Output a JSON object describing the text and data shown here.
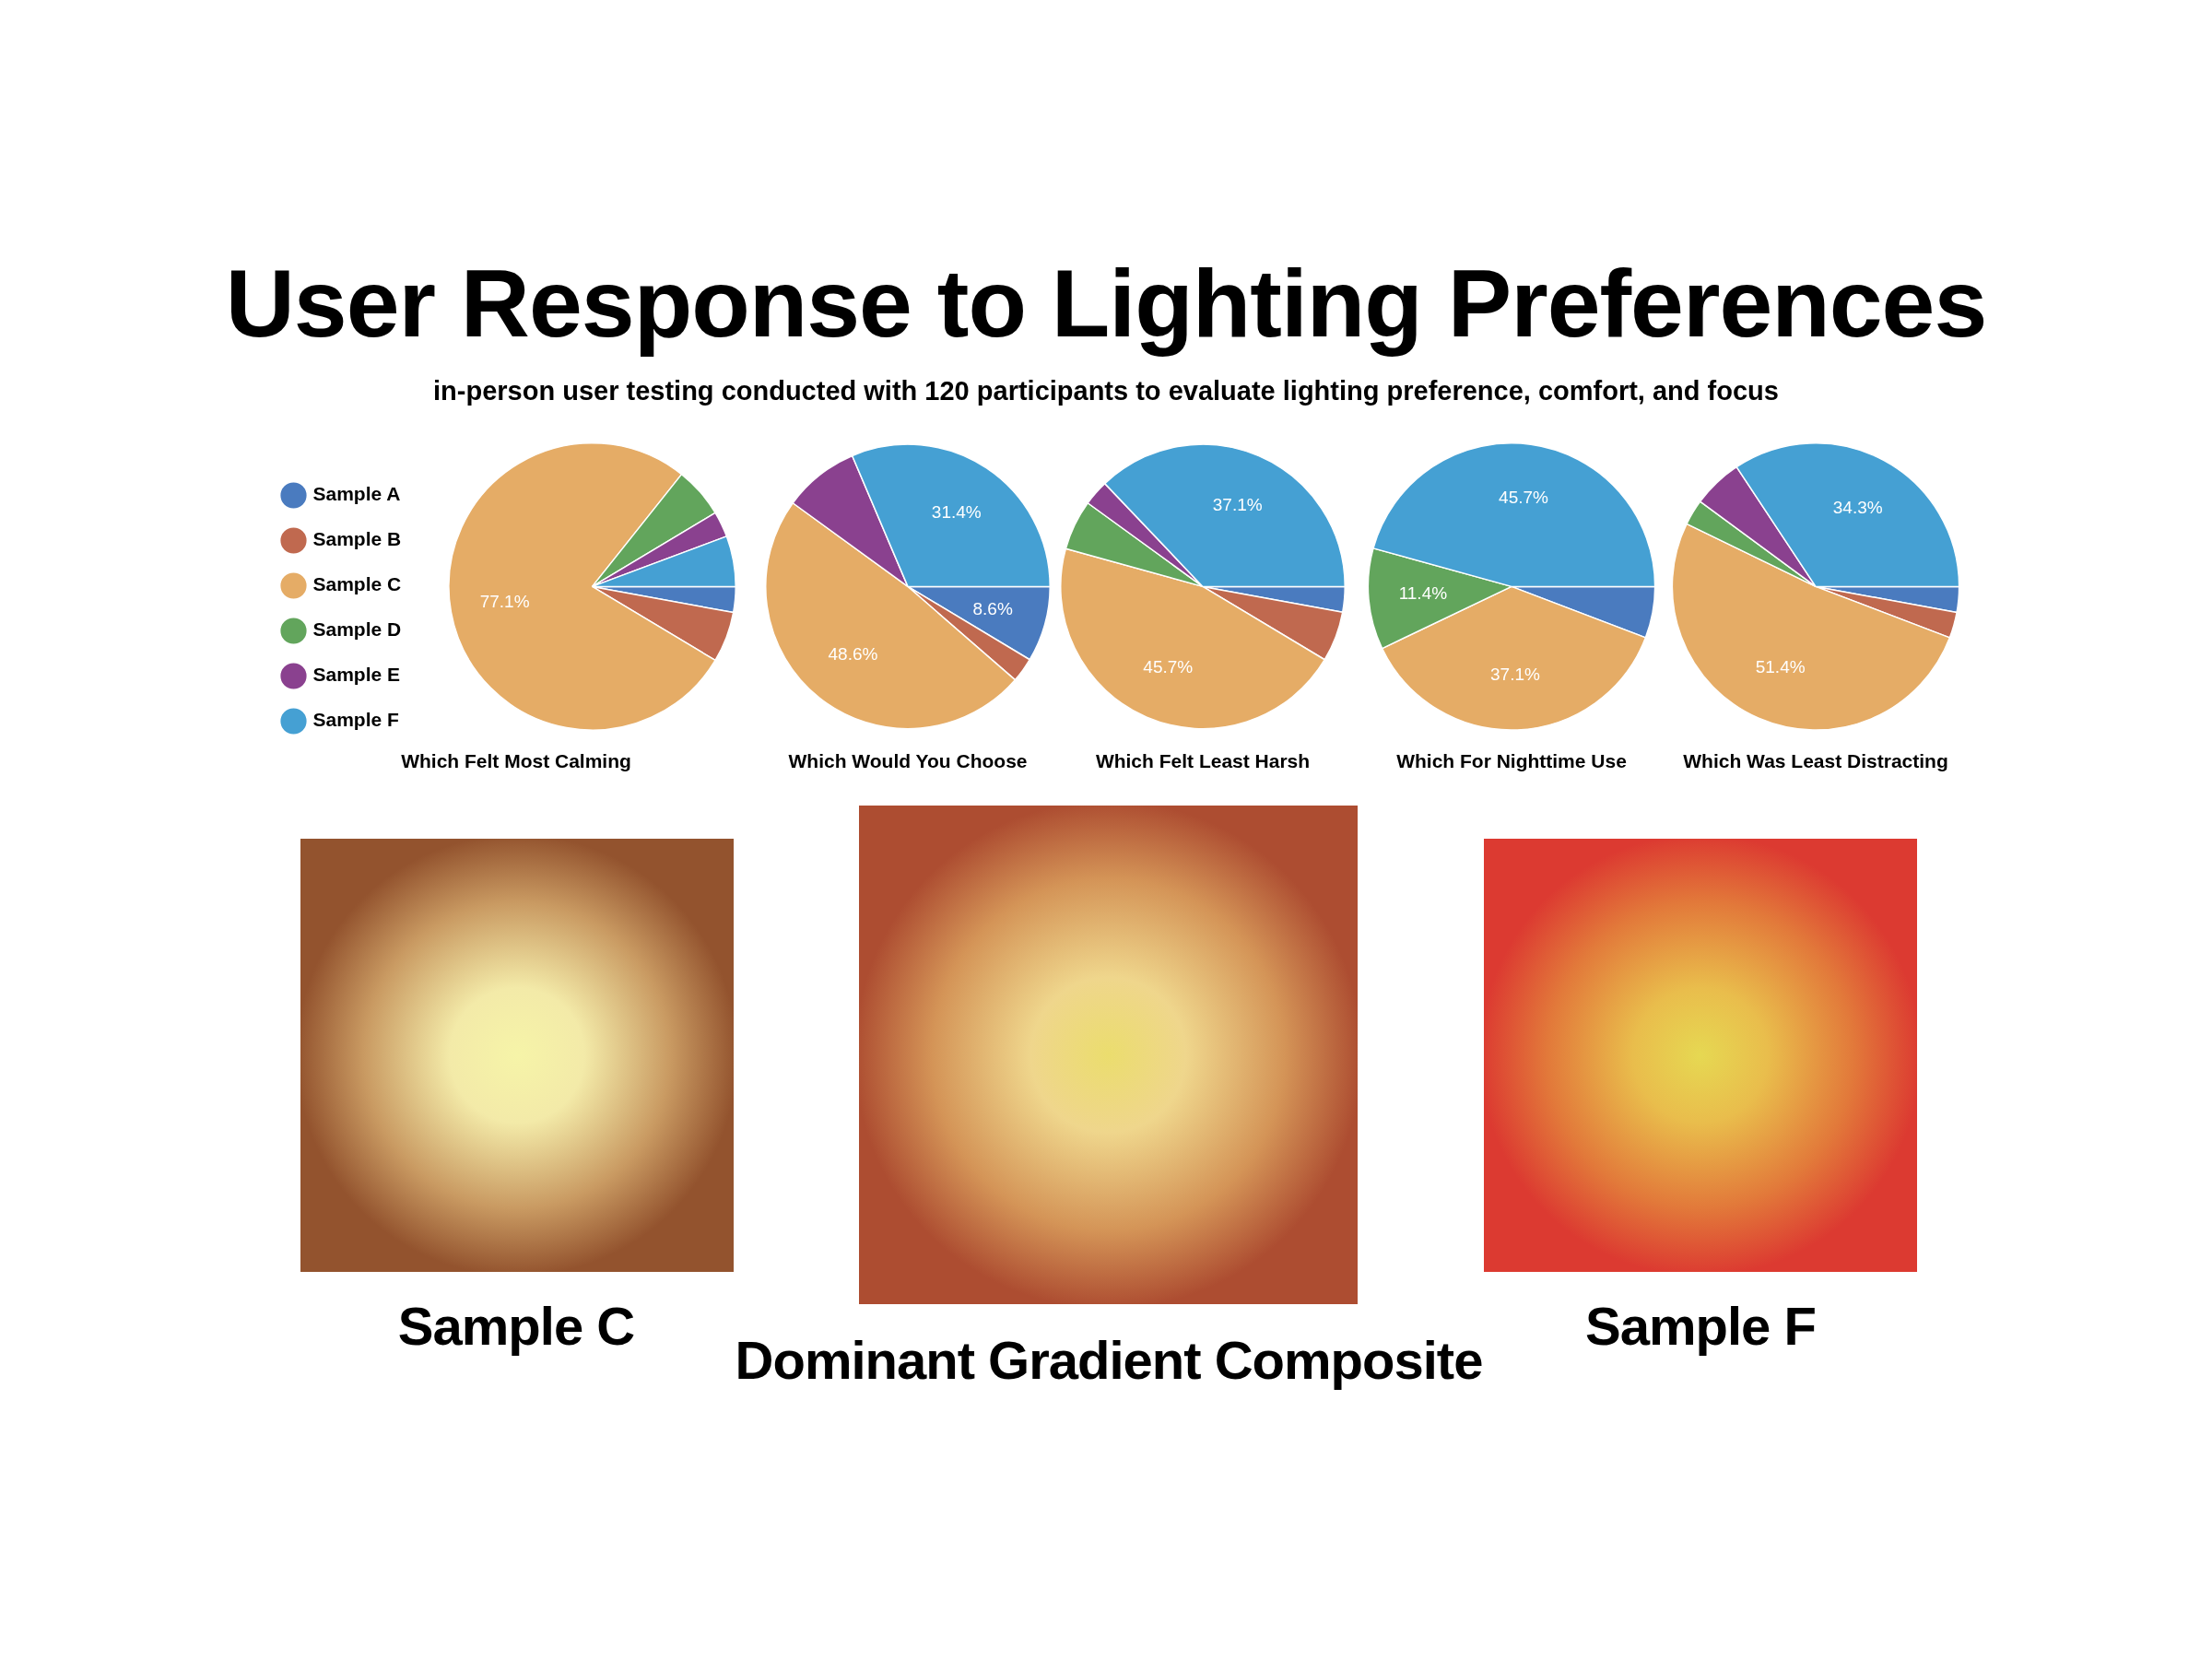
{
  "chart_data": [
    {
      "type": "other",
      "title": "User Response to Lighting Preferences",
      "subtitle": "in-person user testing conducted with 120 participants to evaluate lighting preference, comfort, and focus",
      "annotations": [
        "Sample C",
        "Dominant Gradient Composite",
        "Sample F"
      ]
    },
    {
      "type": "pie",
      "title": "Which Felt Most Calming",
      "categories": [
        "Sample A",
        "Sample B",
        "Sample C",
        "Sample D",
        "Sample E",
        "Sample F"
      ],
      "values": [
        2.9,
        5.7,
        77.1,
        5.7,
        2.9,
        5.7
      ],
      "colors": [
        "#4a7bbf",
        "#c0694f",
        "#e5ac66",
        "#62a55c",
        "#8a418f",
        "#45a0d3"
      ],
      "value_labels": [
        null,
        null,
        "77.1%",
        null,
        null,
        null
      ],
      "legend": "left"
    },
    {
      "type": "pie",
      "title": "Which Would You Choose",
      "categories": [
        null,
        null,
        null,
        null,
        null,
        null
      ],
      "values": [
        8.6,
        2.8,
        48.6,
        0,
        8.6,
        31.4
      ],
      "colors": [
        "#4a7bbf",
        "#c0694f",
        "#e5ac66",
        "#62a55c",
        "#8a418f",
        "#45a0d3"
      ],
      "value_labels": [
        "8.6%",
        null,
        "48.6%",
        null,
        null,
        "31.4%"
      ]
    },
    {
      "type": "pie",
      "title": "Which Felt Least Harsh",
      "categories": [
        null,
        null,
        null,
        null,
        null,
        null
      ],
      "values": [
        2.9,
        5.7,
        45.7,
        5.7,
        2.9,
        37.1
      ],
      "colors": [
        "#4a7bbf",
        "#c0694f",
        "#e5ac66",
        "#62a55c",
        "#8a418f",
        "#45a0d3"
      ],
      "value_labels": [
        null,
        null,
        "45.7%",
        null,
        null,
        "37.1%"
      ]
    },
    {
      "type": "pie",
      "title": "Which For Nighttime Use",
      "categories": [
        null,
        null,
        null,
        null,
        null,
        null
      ],
      "values": [
        5.8,
        0,
        37.1,
        11.4,
        0,
        45.7
      ],
      "colors": [
        "#4a7bbf",
        "#c0694f",
        "#e5ac66",
        "#62a55c",
        "#8a418f",
        "#45a0d3"
      ],
      "value_labels": [
        null,
        null,
        "37.1%",
        "11.4%",
        null,
        "45.7%"
      ]
    },
    {
      "type": "pie",
      "title": "Which Was Least Distracting",
      "categories": [
        null,
        null,
        null,
        null,
        null,
        null
      ],
      "values": [
        2.9,
        2.9,
        51.4,
        2.9,
        5.6,
        34.3
      ],
      "colors": [
        "#4a7bbf",
        "#c0694f",
        "#e5ac66",
        "#62a55c",
        "#8a418f",
        "#45a0d3"
      ],
      "value_labels": [
        null,
        null,
        "51.4%",
        null,
        null,
        "34.3%"
      ]
    }
  ]
}
